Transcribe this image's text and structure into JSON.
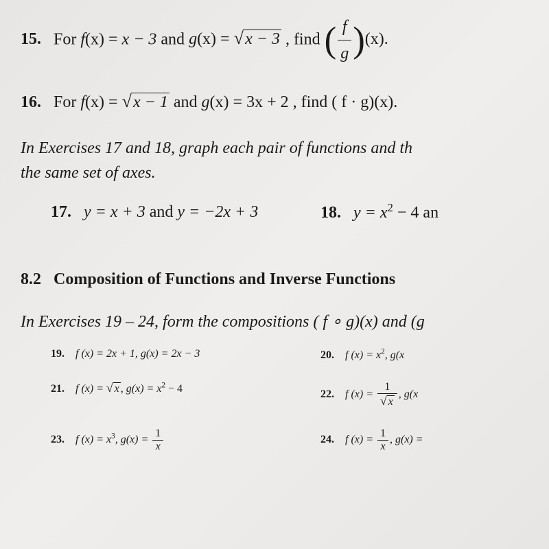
{
  "problems": {
    "p15": {
      "num": "15.",
      "text_prefix": "For ",
      "f_label": "f",
      "f_arg": "(x)",
      "eq": " = ",
      "f_expr": "x − 3",
      "and": " and ",
      "g_label": "g",
      "g_arg": "(x)",
      "g_sqrt_body": "x − 3",
      "find": ", find ",
      "frac_num": "f",
      "frac_den": "g",
      "result_arg": "(x).",
      "color": "#1a1a1a"
    },
    "p16": {
      "num": "16.",
      "text_prefix": "For ",
      "f_label": "f",
      "f_arg": "(x)",
      "eq": " = ",
      "f_sqrt_body": "x − 1",
      "and": " and ",
      "g_label": "g",
      "g_arg": "(x)",
      "g_expr": " = 3x + 2",
      "find": ", find ",
      "result": "( f · g)(x)."
    },
    "instruction1_line1": "In Exercises 17 and 18, graph each pair of functions and th",
    "instruction1_line2": "the same set of axes.",
    "p17": {
      "num": "17.",
      "expr": "y = x + 3",
      "and": " and ",
      "expr2": "y = −2x + 3"
    },
    "p18": {
      "num": "18.",
      "expr": "y = x",
      "sup": "2",
      "tail": " − 4 an"
    },
    "section": {
      "num": "8.2",
      "title": "Composition of Functions and Inverse Functions"
    },
    "instruction2": "In Exercises 19 – 24, form the compositions ( f ∘ g)(x)  and  (g",
    "p19": {
      "num": "19.",
      "f": "f (x) = 2x + 1, ",
      "g": "g(x) = 2x − 3"
    },
    "p20": {
      "num": "20.",
      "f": "f (x) = x",
      "f_sup": "2",
      "g": ", g(x"
    },
    "p21": {
      "num": "21.",
      "f_prefix": "f (x) = ",
      "f_sqrt": "x",
      "g": ", g(x) = x",
      "g_sup": "2",
      "g_tail": " − 4"
    },
    "p22": {
      "num": "22.",
      "f_prefix": "f (x) = ",
      "frac_num": "1",
      "frac_den_sqrt": "x",
      "g": ", g(x"
    },
    "p23": {
      "num": "23.",
      "f": "f (x) = x",
      "f_sup": "3",
      "g_prefix": ", g(x) = ",
      "frac_num": "1",
      "frac_den": "x"
    },
    "p24": {
      "num": "24.",
      "f_prefix": "f (x) = ",
      "frac_num": "1",
      "frac_den": "x",
      "g": ", g(x) ="
    }
  },
  "style": {
    "background": "#ebe9e7",
    "text_color": "#1a1a1a",
    "font_size_main": 24,
    "font_family": "Georgia serif"
  }
}
